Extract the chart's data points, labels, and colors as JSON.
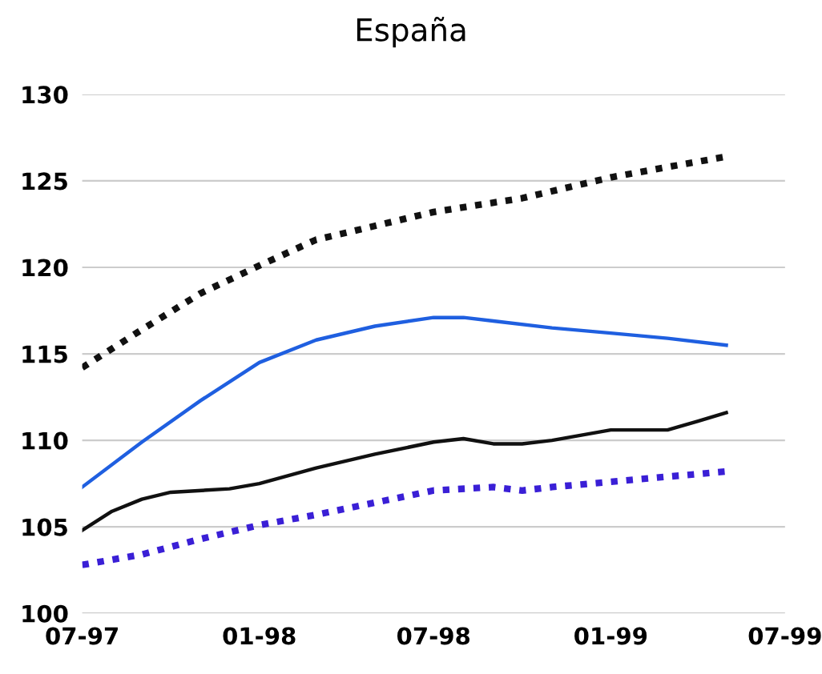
{
  "chart_data": {
    "type": "line",
    "title": "España",
    "series": [
      {
        "color": "#111111",
        "line_style": "dotted",
        "x": [
          "1997-07",
          "1997-09",
          "1997-11",
          "1998-01",
          "1998-03",
          "1998-04",
          "1998-07",
          "1998-10",
          "1999-01",
          "1999-03",
          "1999-05"
        ],
        "values": [
          114.2,
          116.4,
          118.5,
          120.1,
          121.6,
          122.0,
          123.2,
          124.0,
          125.2,
          125.8,
          126.4
        ]
      },
      {
        "color": "#1f5fe0",
        "line_style": "solid",
        "x": [
          "1997-07",
          "1997-09",
          "1997-11",
          "1998-01",
          "1998-03",
          "1998-05",
          "1998-07",
          "1998-08",
          "1998-09",
          "1998-11",
          "1999-01",
          "1999-03",
          "1999-05"
        ],
        "values": [
          107.3,
          109.9,
          112.3,
          114.5,
          115.8,
          116.6,
          117.1,
          117.1,
          116.9,
          116.5,
          116.2,
          115.9,
          115.5
        ]
      },
      {
        "color": "#111111",
        "line_style": "solid",
        "x": [
          "1997-07",
          "1997-08",
          "1997-09",
          "1997-10",
          "1997-12",
          "1998-01",
          "1998-03",
          "1998-05",
          "1998-07",
          "1998-08",
          "1998-09",
          "1998-10",
          "1998-11",
          "1999-01",
          "1999-03",
          "1999-04",
          "1999-05"
        ],
        "values": [
          104.8,
          105.9,
          106.6,
          107.0,
          107.2,
          107.5,
          108.4,
          109.2,
          109.9,
          110.1,
          109.8,
          109.8,
          110.0,
          110.6,
          110.6,
          111.1,
          111.6
        ]
      },
      {
        "color": "#3a1fd6",
        "line_style": "dotted",
        "x": [
          "1997-07",
          "1997-09",
          "1997-11",
          "1998-01",
          "1998-03",
          "1998-05",
          "1998-07",
          "1998-09",
          "1998-10",
          "1998-11",
          "1999-01",
          "1999-03",
          "1999-05"
        ],
        "values": [
          102.8,
          103.4,
          104.3,
          105.1,
          105.7,
          106.4,
          107.1,
          107.3,
          107.1,
          107.3,
          107.6,
          107.9,
          108.2
        ]
      }
    ],
    "xlim": [
      "1997-07",
      "1999-07"
    ],
    "xticks": [
      {
        "value": "1997-07",
        "label": "07-97"
      },
      {
        "value": "1998-01",
        "label": "01-98"
      },
      {
        "value": "1998-07",
        "label": "07-98"
      },
      {
        "value": "1999-01",
        "label": "01-99"
      },
      {
        "value": "1999-07",
        "label": "07-99"
      }
    ],
    "ylim": [
      100,
      130
    ],
    "yticks": [
      100,
      105,
      110,
      115,
      120,
      125,
      130
    ],
    "grid": "y",
    "marker": "none"
  }
}
